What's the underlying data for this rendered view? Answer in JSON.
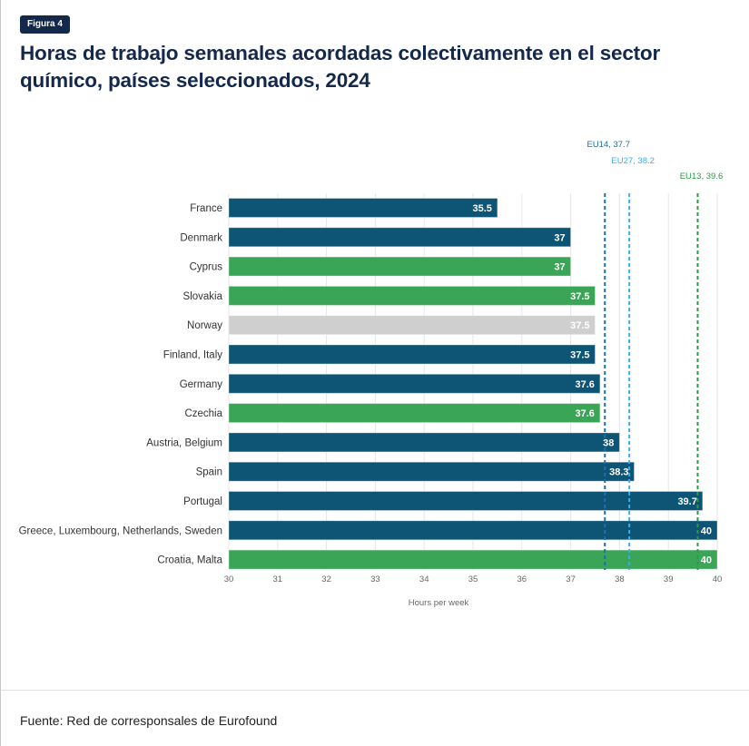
{
  "figure": {
    "badge": "Figura 4",
    "title": "Horas de trabajo semanales acordadas colectivamente en el sector químico, países seleccionados, 2024",
    "source": "Fuente: Red de corresponsales de Eurofound"
  },
  "chart_data": {
    "type": "bar",
    "orientation": "horizontal",
    "title": "Horas de trabajo semanales acordadas colectivamente en el sector químico, países seleccionados, 2024",
    "xlabel": "Hours per week",
    "ylabel": "",
    "xlim": [
      30,
      40
    ],
    "xticks": [
      "30",
      "31",
      "32",
      "33",
      "34",
      "35",
      "36",
      "37",
      "38",
      "39",
      "40"
    ],
    "grid": true,
    "categories": [
      "France",
      "Denmark",
      "Cyprus",
      "Slovakia",
      "Norway",
      "Finland, Italy",
      "Germany",
      "Czechia",
      "Austria, Belgium",
      "Spain",
      "Portugal",
      "Greece, Luxembourg, Netherlands, Sweden",
      "Croatia, Malta"
    ],
    "values": [
      35.5,
      37,
      37,
      37.5,
      37.5,
      37.5,
      37.6,
      37.6,
      38,
      38.3,
      39.7,
      40,
      40
    ],
    "value_labels": [
      "35.5",
      "37",
      "37",
      "37.5",
      "37.5",
      "37.5",
      "37.6",
      "37.6",
      "38",
      "38.3",
      "39.7",
      "40",
      "40"
    ],
    "groups": [
      "EU14",
      "EU14",
      "EU13",
      "EU13",
      "non-EU",
      "EU14",
      "EU14",
      "EU13",
      "EU14",
      "EU14",
      "EU14",
      "EU14",
      "EU13"
    ],
    "group_colors": {
      "EU14": "#0e5475",
      "EU13": "#3aa556",
      "non-EU": "#cfcfcf"
    },
    "reference_lines": [
      {
        "label": "EU14, 37.7",
        "value": 37.7,
        "color": "#1e6fb0"
      },
      {
        "label": "EU27, 38.2",
        "value": 38.2,
        "color": "#38aef0"
      },
      {
        "label": "EU13, 39.6",
        "value": 39.6,
        "color": "#2a9a46"
      }
    ]
  }
}
